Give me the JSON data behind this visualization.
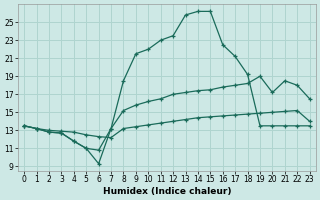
{
  "xlabel": "Humidex (Indice chaleur)",
  "background_color": "#cde8e5",
  "grid_color": "#afd4cf",
  "line_color": "#1a6b5a",
  "xlim": [
    -0.5,
    23.5
  ],
  "ylim": [
    8.5,
    27.0
  ],
  "xticks": [
    0,
    1,
    2,
    3,
    4,
    5,
    6,
    7,
    8,
    9,
    10,
    11,
    12,
    13,
    14,
    15,
    16,
    17,
    18,
    19,
    20,
    21,
    22,
    23
  ],
  "yticks": [
    9,
    11,
    13,
    15,
    17,
    19,
    21,
    23,
    25
  ],
  "line1_x": [
    0,
    1,
    2,
    3,
    4,
    5,
    6,
    7,
    8,
    9,
    10,
    11,
    12,
    13,
    14,
    15,
    16,
    17,
    18,
    19,
    20,
    21,
    22,
    23
  ],
  "line1_y": [
    13.5,
    13.2,
    13.0,
    12.9,
    12.8,
    12.5,
    12.3,
    12.2,
    13.2,
    13.4,
    13.6,
    13.8,
    14.0,
    14.2,
    14.4,
    14.5,
    14.6,
    14.7,
    14.8,
    14.9,
    15.0,
    15.1,
    15.2,
    14.0
  ],
  "line2_x": [
    0,
    1,
    2,
    3,
    4,
    5,
    6,
    7,
    8,
    9,
    10,
    11,
    12,
    13,
    14,
    15,
    16,
    17,
    18,
    19,
    20,
    21,
    22,
    23
  ],
  "line2_y": [
    13.5,
    13.2,
    12.8,
    12.7,
    11.8,
    11.0,
    10.8,
    13.2,
    15.2,
    15.8,
    16.2,
    16.5,
    17.0,
    17.2,
    17.4,
    17.5,
    17.8,
    18.0,
    18.2,
    19.0,
    17.2,
    18.5,
    18.0,
    16.5
  ],
  "line3_x": [
    0,
    1,
    2,
    3,
    4,
    5,
    6,
    7,
    8,
    9,
    10,
    11,
    12,
    13,
    14,
    15,
    16,
    17,
    18,
    19,
    20,
    21,
    22,
    23
  ],
  "line3_y": [
    13.5,
    13.2,
    12.8,
    12.7,
    11.8,
    11.0,
    9.3,
    13.2,
    18.5,
    21.5,
    22.0,
    23.0,
    23.5,
    25.8,
    26.2,
    26.2,
    22.5,
    21.2,
    19.2,
    13.5,
    13.5,
    13.5,
    13.5,
    13.5
  ]
}
